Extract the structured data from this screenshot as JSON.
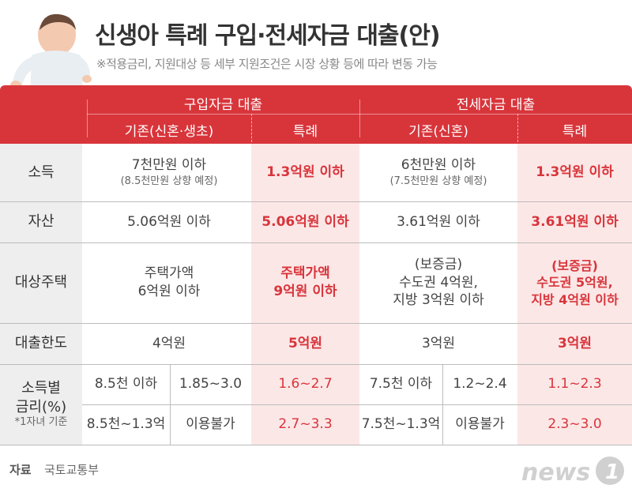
{
  "title": "신생아 특례 구입·전세자금 대출(안)",
  "subtitle": "※적용금리, 지원대상 등 세부 지원조건은 시장 상황 등에 따라 변동 가능",
  "header": {
    "purchase": "구입자금 대출",
    "lease": "전세자금 대출",
    "purchase_existing": "기존(신혼·생초)",
    "purchase_special": "특례",
    "lease_existing": "기존(신혼)",
    "lease_special": "특례"
  },
  "rows": {
    "income": {
      "label": "소득",
      "p_exist": "7천만원 이하",
      "p_exist_note": "(8.5천만원 상향 예정)",
      "p_special": "1.3억원 이하",
      "l_exist": "6천만원 이하",
      "l_exist_note": "(7.5천만원 상향 예정)",
      "l_special": "1.3억원 이하"
    },
    "assets": {
      "label": "자산",
      "p_exist": "5.06억원 이하",
      "p_special": "5.06억원 이하",
      "l_exist": "3.61억원 이하",
      "l_special": "3.61억원 이하"
    },
    "housing": {
      "label": "대상주택",
      "p_exist_1": "주택가액",
      "p_exist_2": "6억원 이하",
      "p_special_1": "주택가액",
      "p_special_2": "9억원 이하",
      "l_exist_1": "(보증금)",
      "l_exist_2": "수도권 4억원,",
      "l_exist_3": "지방 3억원 이하",
      "l_special_1": "(보증금)",
      "l_special_2": "수도권 5억원,",
      "l_special_3": "지방 4억원 이하"
    },
    "limit": {
      "label": "대출한도",
      "p_exist": "4억원",
      "p_special": "5억원",
      "l_exist": "3억원",
      "l_special": "3억원"
    },
    "rate": {
      "label_1": "소득별",
      "label_2": "금리(%)",
      "label_note": "*1자녀 기준",
      "p_inc_a": "8.5천 이하",
      "p_rate_a": "1.85~3.0",
      "p_special_a": "1.6~2.7",
      "l_inc_a": "7.5천 이하",
      "l_rate_a": "1.2~2.4",
      "l_special_a": "1.1~2.3",
      "p_inc_b": "8.5천~1.3억",
      "p_rate_b": "이용불가",
      "p_special_b": "2.7~3.3",
      "l_inc_b": "7.5천~1.3억",
      "l_rate_b": "이용불가",
      "l_special_b": "2.3~3.0"
    }
  },
  "footer": {
    "source_label": "자료",
    "source_value": "국토교통부",
    "logo_text": "news",
    "logo_mark": "1"
  },
  "colors": {
    "accent": "#d8353b",
    "tint": "#fce7e7",
    "label_bg": "#eeeeee"
  }
}
